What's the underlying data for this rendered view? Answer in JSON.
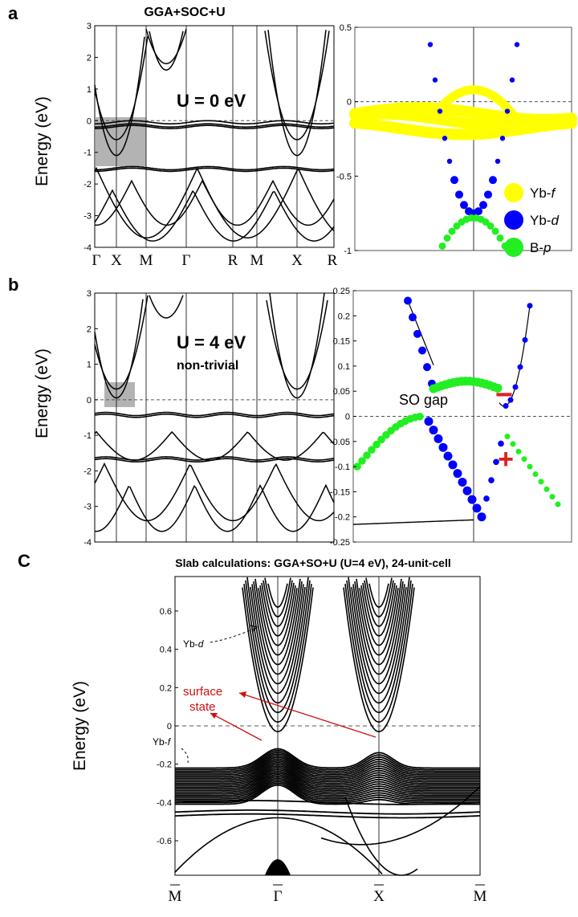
{
  "panel_labels": {
    "a": "a",
    "b": "b",
    "c": "C"
  },
  "top_title": "GGA+SOC+U",
  "slab_title": "Slab calculations: GGA+SO+U (U=4 eV), 24-unit-cell",
  "chart_data": [
    {
      "id": "a-left",
      "type": "line",
      "title": "GGA+SOC+U",
      "ylabel": "Energy (eV)",
      "ylim": [
        -4,
        3
      ],
      "yticks": [
        "3",
        "2",
        "1",
        "0",
        "-1",
        "-2",
        "-3",
        "-4"
      ],
      "kpoints": [
        "Γ",
        "X",
        "M",
        "Γ",
        "R",
        "M",
        "X",
        "R"
      ],
      "annotation": "U = 0 eV",
      "highlight": {
        "x_range": [
          "near X",
          "near X"
        ],
        "y_range": [
          -1.1,
          0.4
        ]
      },
      "fermi_level": 0
    },
    {
      "id": "a-right",
      "type": "scatter",
      "ylim": [
        -1,
        0.5
      ],
      "yticks": [
        "0.5",
        "0",
        "-0.5",
        "-1"
      ],
      "legend": [
        {
          "label": "Yb-",
          "italic": "f",
          "color": "#ffff00"
        },
        {
          "label": "Yb-",
          "italic": "d",
          "color": "#0000ff"
        },
        {
          "label": "B-",
          "italic": "p",
          "color": "#22ee22"
        }
      ],
      "fermi_level": 0
    },
    {
      "id": "b-left",
      "type": "line",
      "ylabel": "Energy (eV)",
      "ylim": [
        -4,
        3
      ],
      "yticks": [
        "3",
        "2",
        "1",
        "0",
        "-1",
        "-2",
        "-3",
        "-4"
      ],
      "annotation": "U = 4 eV",
      "annotation2": "non-trivial",
      "highlight": {
        "y_range": [
          -0.2,
          0.45
        ]
      },
      "fermi_level": 0
    },
    {
      "id": "b-right",
      "type": "scatter",
      "ylim": [
        -0.25,
        0.25
      ],
      "yticks": [
        "0.25",
        "0.2",
        "0.15",
        "0.1",
        "0.05",
        "0",
        "-0.05",
        "-0.1",
        "-0.15",
        "-0.2",
        "-0.25"
      ],
      "annotation": "SO gap",
      "parity_minus": "−",
      "parity_plus": "+",
      "fermi_level": 0
    },
    {
      "id": "c",
      "type": "line",
      "title": "Slab calculations: GGA+SO+U (U=4 eV), 24-unit-cell",
      "ylabel": "Energy (eV)",
      "ylim": [
        -0.78,
        0.78
      ],
      "yticks": [
        "0.6",
        "0.4",
        "0.2",
        "0",
        "-0.2",
        "-0.4",
        "-0.6"
      ],
      "kpoints": [
        "M",
        "Γ",
        "X",
        "M"
      ],
      "annotations": {
        "yb_d": "Yb-",
        "yb_d_it": "d",
        "yb_f": "Yb-",
        "yb_f_it": "f",
        "surface1": "surface",
        "surface2": "state"
      },
      "fermi_level": 0
    }
  ],
  "colors": {
    "f": "#ffff00",
    "d": "#0000ff",
    "p": "#22ee22",
    "red": "#e02020",
    "gray": "#999999"
  }
}
